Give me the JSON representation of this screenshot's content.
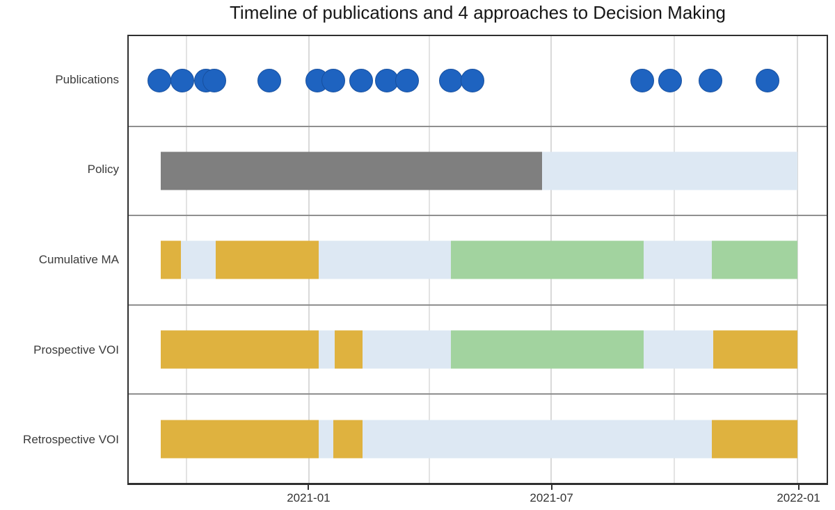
{
  "chart": {
    "title": "Timeline of publications and 4 approaches to Decision Making"
  },
  "chart_data": {
    "type": "timeline",
    "title": "Timeline of publications and 4 approaches to Decision Making",
    "x_domain": [
      "2020-08-19",
      "2022-01-23"
    ],
    "x_ticks": [
      {
        "label": "2021-01",
        "date": "2021-01-01"
      },
      {
        "label": "2021-07",
        "date": "2021-07-01"
      },
      {
        "label": "2022-01",
        "date": "2022-01-01"
      }
    ],
    "x_minor_gridlines": [
      "2020-10-01",
      "2021-04-01",
      "2021-10-01"
    ],
    "grid": "vertical-only",
    "legend": "none",
    "colors": {
      "publication_blue": "#1e63c0",
      "grey": "#7f7f7f",
      "light_blue": "#dde8f3",
      "gold": "#dfb23f",
      "green": "#a2d39f"
    },
    "rows": [
      {
        "label": "Publications",
        "type": "points",
        "color": "publication_blue",
        "points": [
          "2020-09-11",
          "2020-09-28",
          "2020-10-16",
          "2020-10-22",
          "2020-12-02",
          "2021-01-07",
          "2021-01-19",
          "2021-02-09",
          "2021-02-28",
          "2021-03-15",
          "2021-04-17",
          "2021-05-03",
          "2021-09-07",
          "2021-09-28",
          "2021-10-28",
          "2021-12-10"
        ]
      },
      {
        "label": "Policy",
        "type": "bar",
        "segments": [
          {
            "start": "2020-09-12",
            "end": "2021-06-24",
            "color": "grey"
          },
          {
            "start": "2021-06-24",
            "end": "2022-01-01",
            "color": "light_blue"
          }
        ]
      },
      {
        "label": "Cumulative MA",
        "type": "bar",
        "segments": [
          {
            "start": "2020-09-12",
            "end": "2020-09-27",
            "color": "gold"
          },
          {
            "start": "2020-09-27",
            "end": "2020-10-23",
            "color": "light_blue"
          },
          {
            "start": "2020-10-23",
            "end": "2021-01-08",
            "color": "gold"
          },
          {
            "start": "2021-01-08",
            "end": "2021-04-17",
            "color": "light_blue"
          },
          {
            "start": "2021-04-17",
            "end": "2021-09-08",
            "color": "green"
          },
          {
            "start": "2021-09-08",
            "end": "2021-10-29",
            "color": "light_blue"
          },
          {
            "start": "2021-10-29",
            "end": "2022-01-01",
            "color": "green"
          }
        ]
      },
      {
        "label": "Prospective VOI",
        "type": "bar",
        "segments": [
          {
            "start": "2020-09-12",
            "end": "2021-01-08",
            "color": "gold"
          },
          {
            "start": "2021-01-08",
            "end": "2021-01-20",
            "color": "light_blue"
          },
          {
            "start": "2021-01-20",
            "end": "2021-02-10",
            "color": "gold"
          },
          {
            "start": "2021-02-10",
            "end": "2021-04-17",
            "color": "light_blue"
          },
          {
            "start": "2021-04-17",
            "end": "2021-09-08",
            "color": "green"
          },
          {
            "start": "2021-09-08",
            "end": "2021-10-30",
            "color": "light_blue"
          },
          {
            "start": "2021-10-30",
            "end": "2022-01-01",
            "color": "gold"
          }
        ]
      },
      {
        "label": "Retrospective VOI",
        "type": "bar",
        "segments": [
          {
            "start": "2020-09-12",
            "end": "2021-01-08",
            "color": "gold"
          },
          {
            "start": "2021-01-08",
            "end": "2021-01-19",
            "color": "light_blue"
          },
          {
            "start": "2021-01-19",
            "end": "2021-02-10",
            "color": "gold"
          },
          {
            "start": "2021-02-10",
            "end": "2021-10-29",
            "color": "light_blue"
          },
          {
            "start": "2021-10-29",
            "end": "2022-01-01",
            "color": "gold"
          }
        ]
      }
    ]
  }
}
